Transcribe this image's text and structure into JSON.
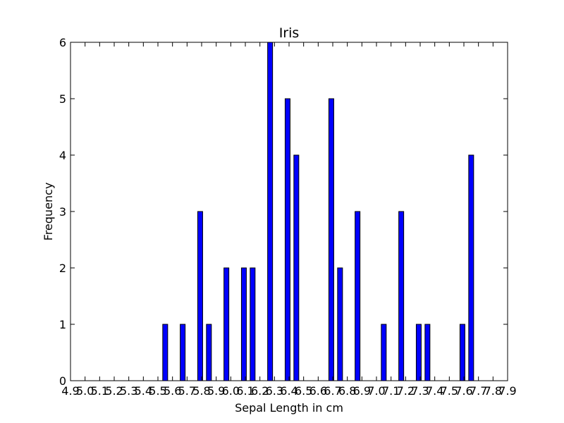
{
  "chart_data": {
    "type": "bar",
    "title": "Iris",
    "xlabel": "Sepal Length in cm",
    "ylabel": "Frequency",
    "xlim": [
      4.9,
      7.9
    ],
    "ylim": [
      0,
      6
    ],
    "y_ticks": [
      0,
      1,
      2,
      3,
      4,
      5,
      6
    ],
    "x_ticks": [
      4.9,
      5.0,
      5.1,
      5.2,
      5.3,
      5.4,
      5.5,
      5.6,
      5.7,
      5.8,
      5.9,
      6.0,
      6.1,
      6.2,
      6.3,
      6.4,
      6.5,
      6.6,
      6.7,
      6.8,
      6.9,
      7.0,
      7.1,
      7.2,
      7.3,
      7.4,
      7.5,
      7.6,
      7.7,
      7.8,
      7.9
    ],
    "x": [
      5.55,
      5.67,
      5.79,
      5.85,
      5.97,
      6.09,
      6.15,
      6.27,
      6.39,
      6.45,
      6.69,
      6.75,
      6.87,
      7.05,
      7.17,
      7.29,
      7.35,
      7.59,
      7.65
    ],
    "values": [
      1,
      1,
      3,
      1,
      2,
      2,
      2,
      6,
      5,
      4,
      5,
      2,
      3,
      1,
      3,
      1,
      1,
      1,
      4
    ],
    "bar_color": "#0000ff",
    "grid": false,
    "legend": "none"
  }
}
